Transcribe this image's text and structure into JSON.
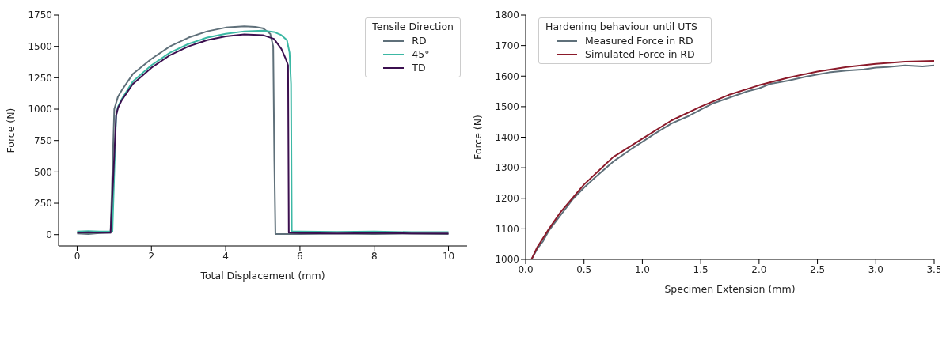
{
  "chart_data": [
    {
      "type": "line",
      "xlabel": "Total Displacement (mm)",
      "ylabel": "Force (N)",
      "legend_title": "Tensile Direction",
      "legend": "top right",
      "xlim": [
        -0.5,
        10.5
      ],
      "ylim": [
        -90,
        1750
      ],
      "xticks": [
        0,
        2,
        4,
        6,
        8,
        10
      ],
      "yticks": [
        0,
        250,
        500,
        750,
        1000,
        1250,
        1500,
        1750
      ],
      "series": [
        {
          "name": "RD",
          "color": "#5f707a",
          "x": [
            0,
            0.3,
            0.6,
            0.9,
            0.95,
            1.0,
            1.1,
            1.2,
            1.5,
            2,
            2.5,
            3,
            3.5,
            4,
            4.5,
            4.8,
            5,
            5.2,
            5.28,
            5.31,
            5.34,
            6,
            7,
            8,
            9,
            10
          ],
          "values": [
            10,
            5,
            12,
            15,
            500,
            1000,
            1100,
            1150,
            1280,
            1400,
            1500,
            1570,
            1620,
            1650,
            1660,
            1655,
            1645,
            1600,
            1500,
            600,
            5,
            5,
            8,
            5,
            8,
            5
          ]
        },
        {
          "name": "45°",
          "color": "#3cb8a4",
          "x": [
            0,
            0.3,
            0.6,
            0.95,
            1.0,
            1.05,
            1.1,
            1.2,
            1.5,
            2,
            2.5,
            3,
            3.5,
            4,
            4.5,
            5,
            5.3,
            5.5,
            5.65,
            5.72,
            5.76,
            5.78,
            6,
            7,
            8,
            9,
            10
          ],
          "values": [
            25,
            28,
            25,
            25,
            500,
            950,
            1020,
            1080,
            1220,
            1350,
            1450,
            1520,
            1570,
            1600,
            1620,
            1625,
            1615,
            1590,
            1550,
            1450,
            1200,
            25,
            25,
            22,
            25,
            20,
            20
          ]
        },
        {
          "name": "TD",
          "color": "#3b0f4f",
          "x": [
            0,
            0.3,
            0.6,
            0.9,
            0.98,
            1.05,
            1.1,
            1.2,
            1.5,
            2,
            2.5,
            3,
            3.5,
            4,
            4.5,
            5,
            5.3,
            5.5,
            5.62,
            5.68,
            5.7,
            6,
            7,
            8,
            9,
            10
          ],
          "values": [
            15,
            18,
            15,
            15,
            500,
            950,
            1010,
            1070,
            1200,
            1330,
            1430,
            1500,
            1550,
            1580,
            1595,
            1590,
            1560,
            1480,
            1400,
            1350,
            15,
            12,
            10,
            12,
            10,
            10
          ]
        }
      ]
    },
    {
      "type": "line",
      "xlabel": "Specimen Extension (mm)",
      "ylabel": "Force (N)",
      "legend_title": "Hardening behaviour until UTS",
      "legend": "top left",
      "xlim": [
        0,
        3.5
      ],
      "ylim": [
        1000,
        1800
      ],
      "xticks": [
        {
          "value": 0,
          "label": "0.0"
        },
        0.5,
        {
          "value": 1,
          "label": "1.0"
        },
        1.5,
        {
          "value": 2,
          "label": "2.0"
        },
        2.5,
        {
          "value": 3,
          "label": "3.0"
        },
        3.5
      ],
      "yticks": [
        1000,
        1100,
        1200,
        1300,
        1400,
        1500,
        1600,
        1700,
        1800
      ],
      "series": [
        {
          "name": "Measured Force in RD",
          "color": "#5f707a",
          "x": [
            0.05,
            0.1,
            0.15,
            0.2,
            0.3,
            0.4,
            0.5,
            0.6,
            0.75,
            0.9,
            1,
            1.1,
            1.25,
            1.4,
            1.5,
            1.6,
            1.75,
            1.9,
            2,
            2.1,
            2.25,
            2.4,
            2.5,
            2.6,
            2.75,
            2.9,
            3,
            3.1,
            3.25,
            3.4,
            3.5
          ],
          "values": [
            1000,
            1035,
            1060,
            1095,
            1145,
            1195,
            1235,
            1270,
            1320,
            1360,
            1385,
            1410,
            1445,
            1470,
            1490,
            1510,
            1530,
            1550,
            1560,
            1575,
            1585,
            1598,
            1605,
            1612,
            1618,
            1622,
            1628,
            1630,
            1635,
            1632,
            1635
          ]
        },
        {
          "name": "Simulated Force in RD",
          "color": "#8b1a2a",
          "x": [
            0.05,
            0.1,
            0.2,
            0.3,
            0.5,
            0.75,
            1,
            1.25,
            1.5,
            1.75,
            2,
            2.25,
            2.5,
            2.75,
            3,
            3.25,
            3.5
          ],
          "values": [
            1000,
            1040,
            1100,
            1155,
            1245,
            1335,
            1395,
            1455,
            1500,
            1540,
            1570,
            1595,
            1615,
            1630,
            1640,
            1647,
            1650
          ]
        }
      ]
    }
  ]
}
